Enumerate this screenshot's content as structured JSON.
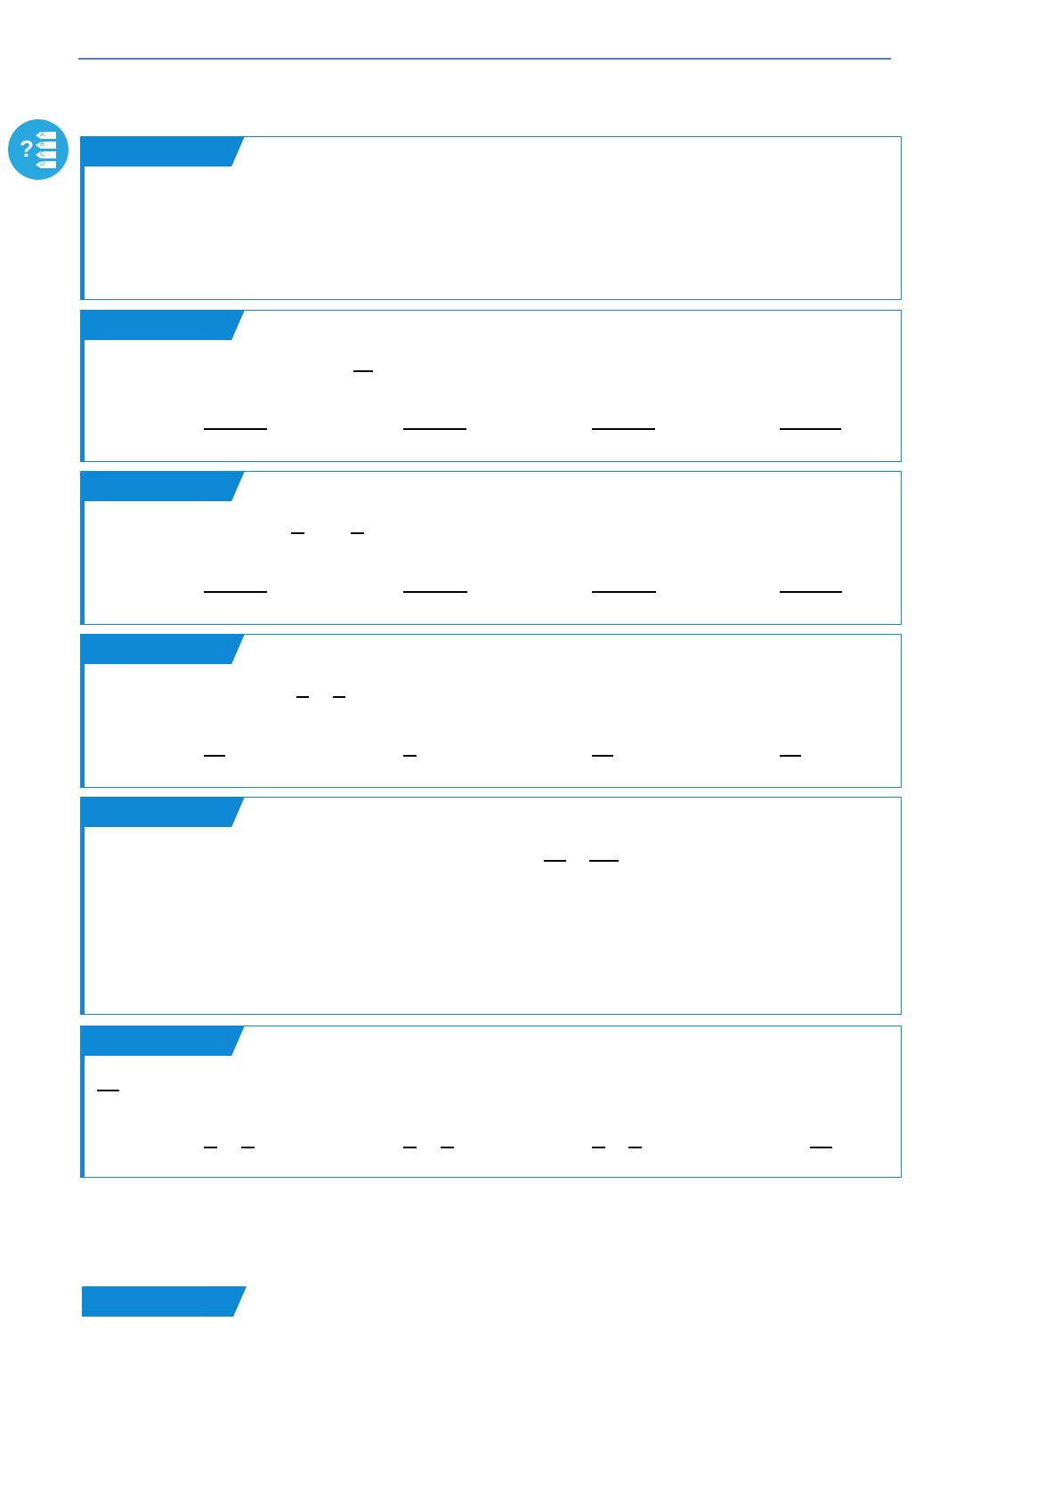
{
  "colors": {
    "accent": "#0f88d5",
    "rule": "#4a7fd0",
    "icon": "#29a8e0"
  },
  "quiz_icon": {
    "name": "multiple-choice-question-icon",
    "symbol": "?",
    "options": [
      "A.",
      "B.",
      "C.",
      "D."
    ]
  },
  "sections": [
    {},
    {},
    {},
    {},
    {},
    {}
  ]
}
